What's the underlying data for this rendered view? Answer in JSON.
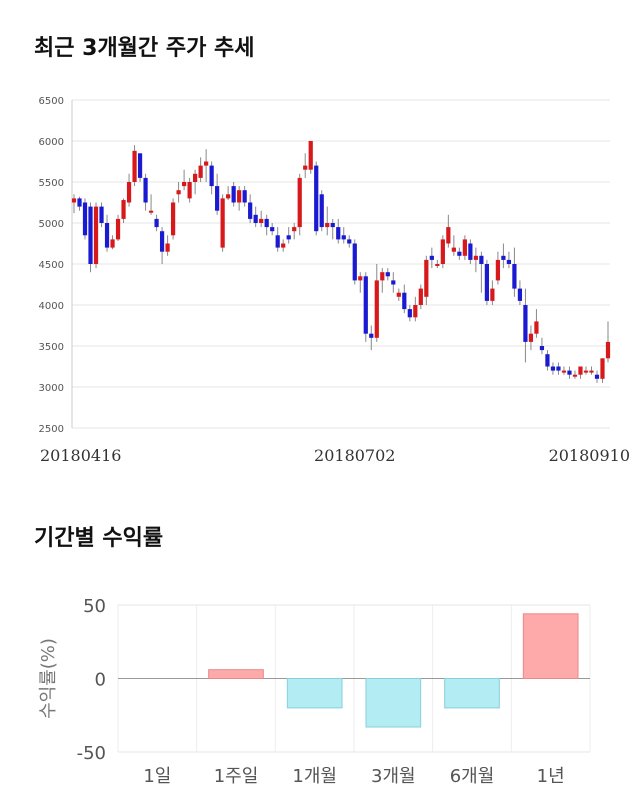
{
  "titles": {
    "price_trend": "최근 3개월간 주가 추세",
    "returns": "기간별 수익률"
  },
  "chart_data": [
    {
      "type": "candlestick",
      "title": "최근 3개월간 주가 추세",
      "ylim": [
        2500,
        6500
      ],
      "yticks": [
        2500,
        3000,
        3500,
        4000,
        4500,
        5000,
        5500,
        6000,
        6500
      ],
      "xtick_labels": [
        "20180416",
        "20180702",
        "20180910"
      ],
      "xtick_index": [
        0,
        51,
        100
      ],
      "grid": true,
      "up_color": "#d7191c",
      "down_color": "#1a1ad0",
      "wick_color": "#888888",
      "candles": [
        [
          5250,
          5350,
          5120,
          5300
        ],
        [
          5300,
          5320,
          5150,
          5200
        ],
        [
          5250,
          5300,
          4800,
          4850
        ],
        [
          5200,
          5250,
          4400,
          4500
        ],
        [
          4500,
          5250,
          4450,
          5200
        ],
        [
          5200,
          5250,
          4950,
          5000
        ],
        [
          5000,
          5100,
          4650,
          4700
        ],
        [
          4700,
          4850,
          4680,
          4800
        ],
        [
          4800,
          5100,
          4780,
          5050
        ],
        [
          5050,
          5300,
          5000,
          5280
        ],
        [
          5250,
          5600,
          5200,
          5500
        ],
        [
          5500,
          5950,
          5450,
          5880
        ],
        [
          5850,
          5850,
          5500,
          5550
        ],
        [
          5550,
          5600,
          5150,
          5250
        ],
        [
          5150,
          5350,
          5100,
          5150
        ],
        [
          5050,
          5100,
          4900,
          4950
        ],
        [
          4900,
          4950,
          4500,
          4650
        ],
        [
          4650,
          4850,
          4600,
          4750
        ],
        [
          4850,
          5300,
          4800,
          5250
        ],
        [
          5350,
          5500,
          5250,
          5400
        ],
        [
          5450,
          5650,
          5400,
          5500
        ],
        [
          5300,
          5550,
          5250,
          5500
        ],
        [
          5500,
          5650,
          5350,
          5600
        ],
        [
          5550,
          5800,
          5500,
          5700
        ],
        [
          5700,
          5900,
          5500,
          5750
        ],
        [
          5700,
          5750,
          5350,
          5450
        ],
        [
          5450,
          5600,
          5100,
          5150
        ],
        [
          4700,
          5350,
          4650,
          5300
        ],
        [
          5300,
          5450,
          5280,
          5350
        ],
        [
          5450,
          5500,
          5200,
          5250
        ],
        [
          5250,
          5450,
          5150,
          5400
        ],
        [
          5400,
          5450,
          5200,
          5250
        ],
        [
          5250,
          5350,
          5000,
          5050
        ],
        [
          5100,
          5200,
          4950,
          5000
        ],
        [
          5000,
          5150,
          4950,
          5050
        ],
        [
          5050,
          5100,
          4850,
          4950
        ],
        [
          4950,
          5000,
          4850,
          4900
        ],
        [
          4850,
          4950,
          4650,
          4700
        ],
        [
          4700,
          4800,
          4650,
          4750
        ],
        [
          4850,
          4950,
          4750,
          4800
        ],
        [
          4900,
          5000,
          4800,
          4950
        ],
        [
          4950,
          5600,
          4850,
          5550
        ],
        [
          5650,
          5850,
          5550,
          5700
        ],
        [
          5650,
          6000,
          5600,
          6000
        ],
        [
          5700,
          5750,
          4850,
          4900
        ],
        [
          5350,
          5400,
          4900,
          4950
        ],
        [
          4950,
          5200,
          4850,
          5000
        ],
        [
          5000,
          5050,
          4800,
          4950
        ],
        [
          4950,
          5050,
          4750,
          4800
        ],
        [
          4850,
          4950,
          4750,
          4800
        ],
        [
          4800,
          4850,
          4700,
          4750
        ],
        [
          4750,
          4800,
          4250,
          4300
        ],
        [
          4300,
          4400,
          4150,
          4350
        ],
        [
          4350,
          4400,
          3550,
          3650
        ],
        [
          3650,
          3750,
          3450,
          3600
        ],
        [
          3600,
          4500,
          3550,
          4300
        ],
        [
          4300,
          4450,
          4150,
          4400
        ],
        [
          4400,
          4450,
          4300,
          4350
        ],
        [
          4300,
          4400,
          4150,
          4250
        ],
        [
          4100,
          4200,
          4050,
          4150
        ],
        [
          4150,
          4250,
          3900,
          3950
        ],
        [
          3950,
          4000,
          3800,
          3850
        ],
        [
          3850,
          4100,
          3800,
          4000
        ],
        [
          4000,
          4250,
          3950,
          4200
        ],
        [
          4100,
          4600,
          4000,
          4550
        ],
        [
          4600,
          4700,
          4450,
          4550
        ],
        [
          4500,
          4550,
          4450,
          4500
        ],
        [
          4500,
          4850,
          4450,
          4800
        ],
        [
          4750,
          5100,
          4700,
          4950
        ],
        [
          4650,
          4850,
          4600,
          4700
        ],
        [
          4650,
          4700,
          4550,
          4600
        ],
        [
          4600,
          4850,
          4550,
          4800
        ],
        [
          4750,
          4800,
          4500,
          4550
        ],
        [
          4550,
          4700,
          4400,
          4600
        ],
        [
          4600,
          4650,
          4150,
          4500
        ],
        [
          4500,
          4550,
          4000,
          4050
        ],
        [
          4050,
          4300,
          4000,
          4200
        ],
        [
          4300,
          4650,
          4250,
          4550
        ],
        [
          4600,
          4750,
          4450,
          4550
        ],
        [
          4550,
          4650,
          4450,
          4500
        ],
        [
          4500,
          4700,
          4100,
          4200
        ],
        [
          4200,
          4300,
          4000,
          4050
        ],
        [
          4000,
          4200,
          3300,
          3550
        ],
        [
          3550,
          3750,
          3450,
          3650
        ],
        [
          3650,
          3950,
          3600,
          3800
        ],
        [
          3500,
          3600,
          3400,
          3450
        ],
        [
          3400,
          3450,
          3200,
          3250
        ],
        [
          3250,
          3300,
          3150,
          3200
        ],
        [
          3250,
          3300,
          3150,
          3200
        ],
        [
          3200,
          3250,
          3150,
          3200
        ],
        [
          3200,
          3250,
          3100,
          3150
        ],
        [
          3150,
          3200,
          3100,
          3150
        ],
        [
          3150,
          3250,
          3100,
          3250
        ],
        [
          3200,
          3250,
          3150,
          3200
        ],
        [
          3200,
          3250,
          3150,
          3200
        ],
        [
          3150,
          3200,
          3050,
          3100
        ],
        [
          3100,
          3350,
          3050,
          3350
        ],
        [
          3350,
          3800,
          3300,
          3550
        ]
      ]
    },
    {
      "type": "bar",
      "title": "기간별 수익률",
      "ylabel": "수익률(%)",
      "ylim": [
        -50,
        50
      ],
      "yticks": [
        50,
        0,
        -50
      ],
      "categories": [
        "1일",
        "1주일",
        "1개월",
        "3개월",
        "6개월",
        "1년"
      ],
      "values": [
        0,
        6,
        -20,
        -33,
        -20,
        44
      ],
      "positive_color": "#ffaaaa",
      "negative_color": "#b3ecf3"
    }
  ]
}
